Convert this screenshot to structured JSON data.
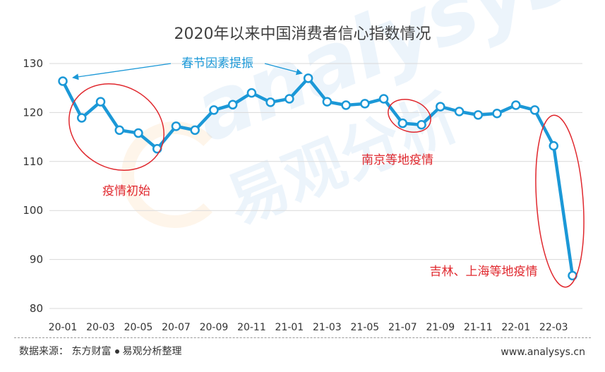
{
  "chart_data": {
    "type": "line",
    "title": "2020年以来中国消费者信心指数情况",
    "ylim": [
      80,
      130
    ],
    "yticks": [
      80,
      90,
      100,
      110,
      120,
      130
    ],
    "grid": true,
    "x": [
      "20-01",
      "20-02",
      "20-03",
      "20-04",
      "20-05",
      "20-06",
      "20-07",
      "20-08",
      "20-09",
      "20-10",
      "20-11",
      "20-12",
      "21-01",
      "21-02",
      "21-03",
      "21-04",
      "21-05",
      "21-06",
      "21-07",
      "21-08",
      "21-09",
      "21-10",
      "21-11",
      "21-12",
      "22-01",
      "22-02",
      "22-03",
      "22-04"
    ],
    "xtick_labels": [
      "20-01",
      "20-03",
      "20-05",
      "20-07",
      "20-09",
      "20-11",
      "21-01",
      "21-03",
      "21-05",
      "21-07",
      "21-09",
      "21-11",
      "22-01",
      "22-03"
    ],
    "series": [
      {
        "values": [
          126.4,
          118.9,
          122.2,
          116.4,
          115.8,
          112.6,
          117.2,
          116.4,
          120.5,
          121.6,
          124.0,
          122.1,
          122.8,
          127.0,
          122.2,
          121.5,
          121.8,
          122.8,
          117.8,
          117.5,
          121.2,
          120.2,
          119.5,
          119.8,
          121.5,
          120.5,
          113.2,
          86.7
        ]
      }
    ],
    "annotations": {
      "spring": "春节因素提振",
      "initial": "疫情初始",
      "nanjing": "南京等地疫情",
      "jilin": "吉林、上海等地疫情"
    },
    "colors": {
      "line": "#1b98d7",
      "annotation_red": "#e0282e",
      "annotation_blue": "#1b98d7",
      "grid": "#d9d9d9"
    }
  },
  "watermark": {
    "en": "analysys",
    "cn": "易观分析"
  },
  "footer": {
    "source_prefix": "数据来源：  东方财富",
    "source_suffix": "易观分析整理",
    "site": "www.analysys.cn"
  }
}
